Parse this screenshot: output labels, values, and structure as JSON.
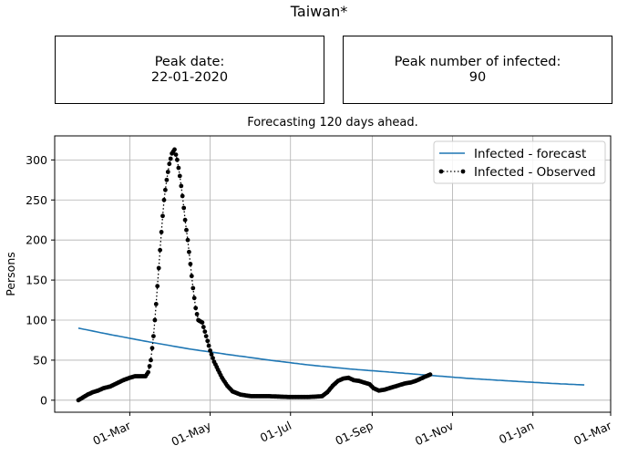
{
  "figure": {
    "title": "Taiwan*",
    "subtitle": "Forecasting 120 days ahead."
  },
  "info_boxes": {
    "peak_date_label": "Peak date:",
    "peak_date_value": "22-01-2020",
    "peak_number_label": "Peak number of infected:",
    "peak_number_value": "90"
  },
  "colors": {
    "forecast": "#1f77b4",
    "observed": "#000000",
    "grid": "#b0b0b0"
  },
  "chart_data": {
    "type": "line",
    "title": "Forecasting 120 days ahead.",
    "xlabel": "",
    "ylabel": "Persons",
    "xlim": [
      "2020-01-04",
      "2021-03-01"
    ],
    "ylim": [
      -15,
      330
    ],
    "grid": true,
    "legend_position": "top-right",
    "x_ticks": [
      "2020-03-01",
      "2020-05-01",
      "2020-07-01",
      "2020-09-01",
      "2020-11-01",
      "2021-01-01",
      "2021-03-01"
    ],
    "x_tick_labels": [
      "01-Mar",
      "01-May",
      "01-Jul",
      "01-Sep",
      "01-Nov",
      "01-Jan",
      "01-Mar"
    ],
    "y_ticks": [
      0,
      50,
      100,
      150,
      200,
      250,
      300
    ],
    "series": [
      {
        "name": "Infected - forecast",
        "style": "solid line",
        "x_range": [
          "2020-01-22",
          "2021-02-10"
        ],
        "points": [
          [
            "2020-01-22",
            90
          ],
          [
            "2020-02-15",
            82
          ],
          [
            "2020-03-15",
            73
          ],
          [
            "2020-04-15",
            64
          ],
          [
            "2020-05-15",
            57
          ],
          [
            "2020-06-15",
            50
          ],
          [
            "2020-07-15",
            44
          ],
          [
            "2020-08-15",
            39
          ],
          [
            "2020-09-15",
            35
          ],
          [
            "2020-10-15",
            31
          ],
          [
            "2020-11-15",
            27
          ],
          [
            "2020-12-15",
            24
          ],
          [
            "2021-01-15",
            21
          ],
          [
            "2021-02-10",
            19
          ]
        ]
      },
      {
        "name": "Infected - Observed",
        "style": "dotted line with circle markers",
        "points": [
          [
            "2020-01-22",
            0
          ],
          [
            "2020-01-25",
            3
          ],
          [
            "2020-01-29",
            7
          ],
          [
            "2020-02-02",
            10
          ],
          [
            "2020-02-06",
            12
          ],
          [
            "2020-02-10",
            15
          ],
          [
            "2020-02-15",
            17
          ],
          [
            "2020-02-20",
            21
          ],
          [
            "2020-02-25",
            25
          ],
          [
            "2020-03-01",
            28
          ],
          [
            "2020-03-05",
            30
          ],
          [
            "2020-03-09",
            30
          ],
          [
            "2020-03-13",
            30
          ],
          [
            "2020-03-15",
            35
          ],
          [
            "2020-03-17",
            50
          ],
          [
            "2020-03-19",
            80
          ],
          [
            "2020-03-21",
            120
          ],
          [
            "2020-03-23",
            165
          ],
          [
            "2020-03-25",
            210
          ],
          [
            "2020-03-27",
            250
          ],
          [
            "2020-03-29",
            275
          ],
          [
            "2020-03-31",
            295
          ],
          [
            "2020-04-02",
            308
          ],
          [
            "2020-04-04",
            313
          ],
          [
            "2020-04-06",
            300
          ],
          [
            "2020-04-08",
            280
          ],
          [
            "2020-04-10",
            255
          ],
          [
            "2020-04-12",
            225
          ],
          [
            "2020-04-14",
            200
          ],
          [
            "2020-04-16",
            170
          ],
          [
            "2020-04-18",
            140
          ],
          [
            "2020-04-20",
            115
          ],
          [
            "2020-04-22",
            100
          ],
          [
            "2020-04-25",
            97
          ],
          [
            "2020-04-28",
            80
          ],
          [
            "2020-05-01",
            62
          ],
          [
            "2020-05-04",
            48
          ],
          [
            "2020-05-07",
            38
          ],
          [
            "2020-05-10",
            28
          ],
          [
            "2020-05-14",
            18
          ],
          [
            "2020-05-18",
            11
          ],
          [
            "2020-05-24",
            7
          ],
          [
            "2020-06-01",
            5
          ],
          [
            "2020-06-15",
            5
          ],
          [
            "2020-06-30",
            4
          ],
          [
            "2020-07-15",
            4
          ],
          [
            "2020-07-25",
            5
          ],
          [
            "2020-07-29",
            10
          ],
          [
            "2020-08-02",
            18
          ],
          [
            "2020-08-06",
            24
          ],
          [
            "2020-08-10",
            27
          ],
          [
            "2020-08-14",
            28
          ],
          [
            "2020-08-18",
            25
          ],
          [
            "2020-08-22",
            24
          ],
          [
            "2020-08-26",
            22
          ],
          [
            "2020-08-30",
            20
          ],
          [
            "2020-09-02",
            15
          ],
          [
            "2020-09-06",
            12
          ],
          [
            "2020-09-10",
            13
          ],
          [
            "2020-09-14",
            15
          ],
          [
            "2020-09-18",
            17
          ],
          [
            "2020-09-22",
            19
          ],
          [
            "2020-09-26",
            21
          ],
          [
            "2020-09-30",
            22
          ],
          [
            "2020-10-04",
            24
          ],
          [
            "2020-10-08",
            27
          ],
          [
            "2020-10-12",
            30
          ],
          [
            "2020-10-15",
            32
          ]
        ]
      }
    ]
  }
}
